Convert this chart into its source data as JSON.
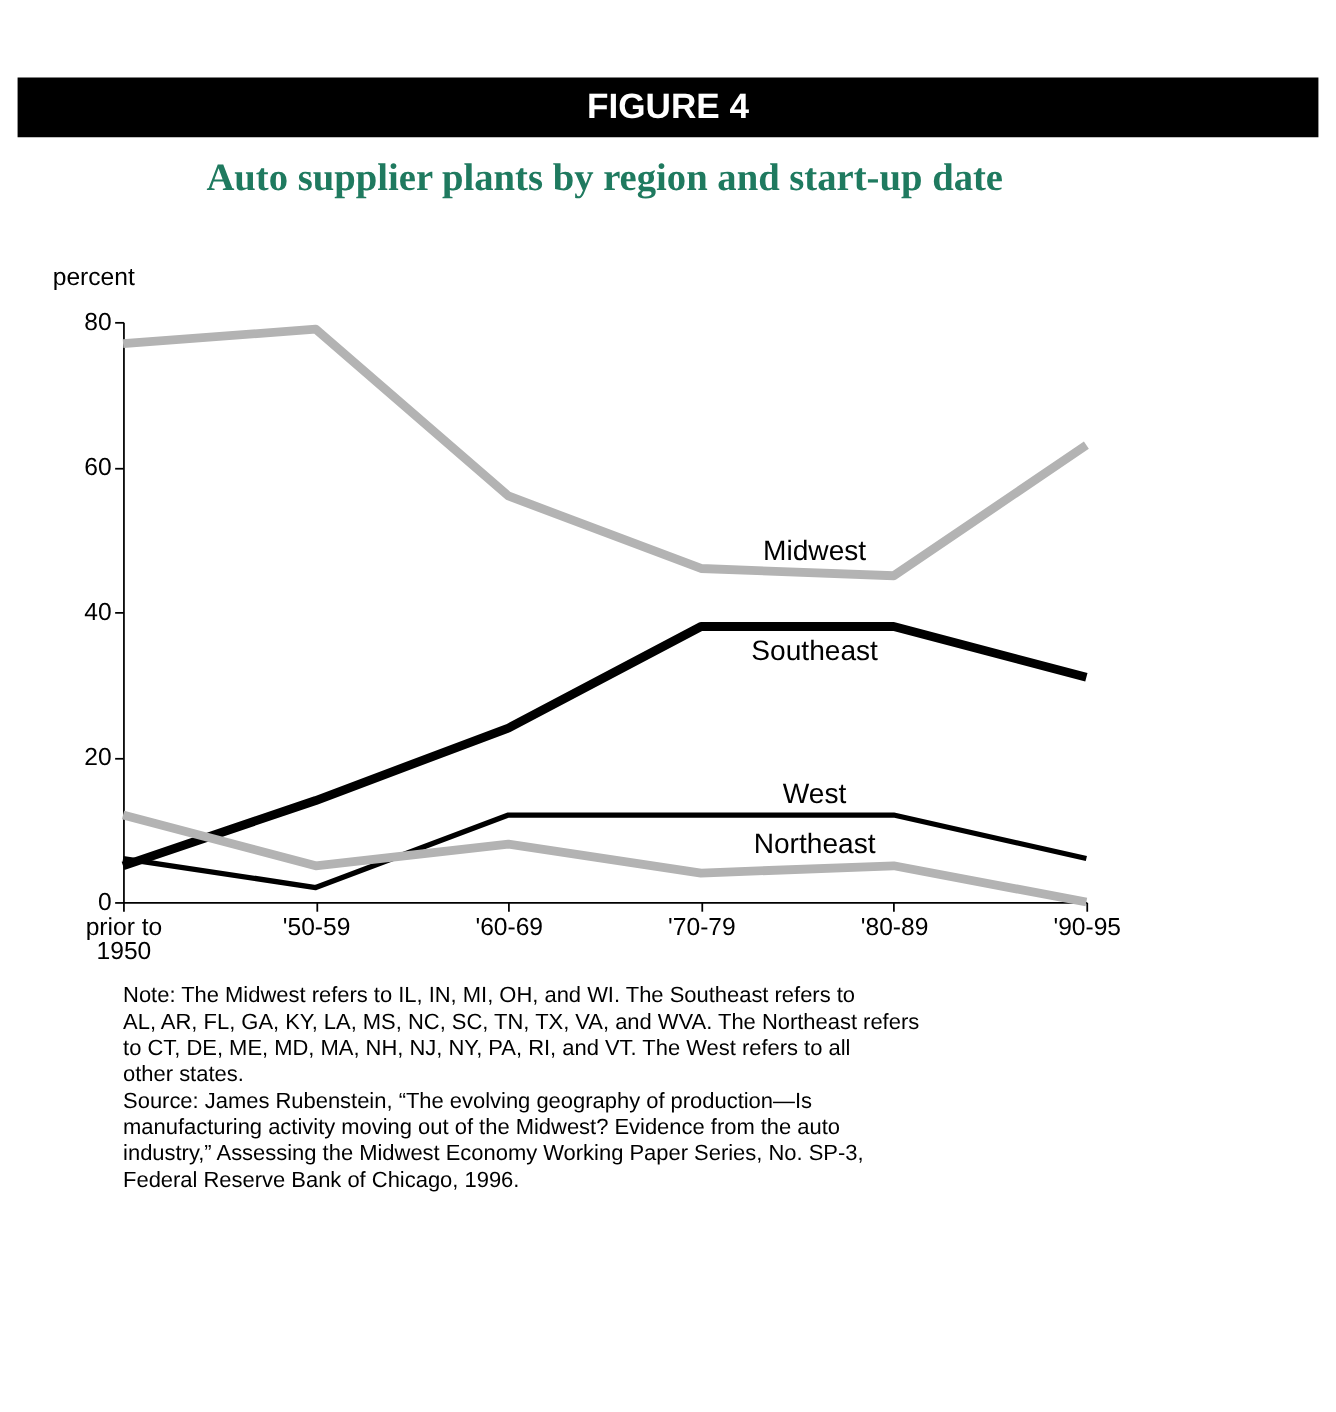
{
  "chart_data": {
    "type": "line",
    "title": "FIGURE 4",
    "subtitle": "Auto supplier plants by region and start-up date",
    "ylabel": "percent",
    "categories": [
      "prior to 1950",
      "'50-59",
      "'60-69",
      "'70-79",
      "'80-89",
      "'90-95"
    ],
    "ylim": [
      0,
      80
    ],
    "yticks": [
      0,
      20,
      40,
      60,
      80
    ],
    "grid": false,
    "legend": false,
    "marker": "none",
    "line_style": "solid",
    "series": [
      {
        "name": "Midwest",
        "color": "#b3b3b3",
        "values": [
          77,
          79,
          56,
          46,
          45,
          63
        ]
      },
      {
        "name": "Southeast",
        "color": "#000000",
        "values": [
          5,
          14,
          24,
          38,
          38,
          31
        ]
      },
      {
        "name": "West",
        "color": "#000000",
        "values": [
          6,
          2,
          12,
          12,
          12,
          6
        ]
      },
      {
        "name": "Northeast",
        "color": "#b3b3b3",
        "values": [
          12,
          5,
          8,
          4,
          5,
          0
        ]
      }
    ],
    "annotations": [
      "Note: The Midwest refers to IL, IN, MI, OH, and WI. The Southeast refers to AL, AR, FL, GA, KY, LA, MS, NC, SC, TN, TX, VA, and WVA. The Northeast refers to CT, DE, ME, MD, MA, NH, NJ, NY, PA, RI, and VT. The West refers to all other states.",
      "Source: James Rubenstein, “The evolving geography of production—Is manufacturing activity moving out of the Midwest? Evidence from the auto industry,” Assessing the Midwest Economy Working Paper Series, No. SP-3, Federal Reserve Bank of Chicago, 1996."
    ]
  }
}
